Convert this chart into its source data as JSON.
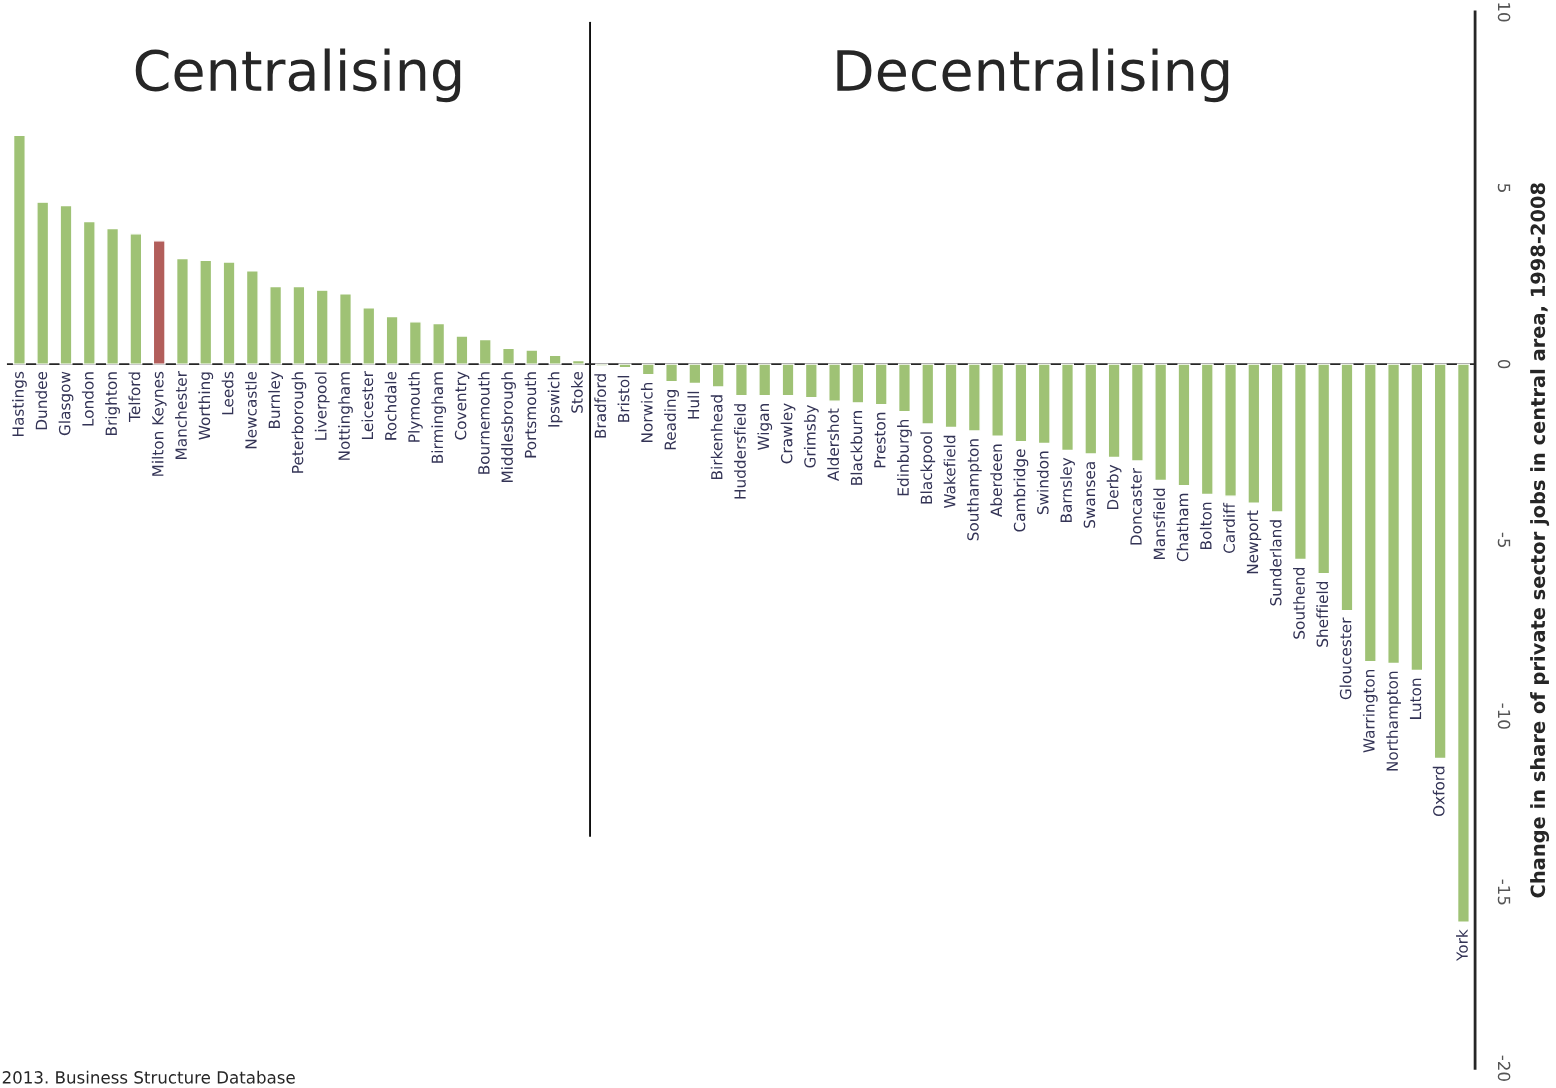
{
  "chart_data": {
    "type": "bar",
    "ylabel": "Change in share of private sector jobs in central area, 1998-2008",
    "annotations": [
      "Centralising",
      "Decentralising",
      "2013. Business Structure Database"
    ],
    "categories": [
      "Hastings",
      "Dundee",
      "Glasgow",
      "London",
      "Brighton",
      "Telford",
      "Milton Keynes",
      "Manchester",
      "Worthing",
      "Leeds",
      "Newcastle",
      "Burnley",
      "Peterborough",
      "Liverpool",
      "Nottingham",
      "Leicester",
      "Rochdale",
      "Plymouth",
      "Birmingham",
      "Coventry",
      "Bournemouth",
      "Middlesbrough",
      "Portsmouth",
      "Ipswich",
      "Stoke",
      "Bradford",
      "Bristol",
      "Norwich",
      "Reading",
      "Hull",
      "Birkenhead",
      "Huddersfield",
      "Wigan",
      "Crawley",
      "Grimsby",
      "Aldershot",
      "Blackburn",
      "Preston",
      "Edinburgh",
      "Blackpool",
      "Wakefield",
      "Southampton",
      "Aberdeen",
      "Cambridge",
      "Swindon",
      "Barnsley",
      "Swansea",
      "Derby",
      "Doncaster",
      "Mansfield",
      "Chatham",
      "Bolton",
      "Cardiff",
      "Newport",
      "Sunderland",
      "Southend",
      "Sheffield",
      "Gloucester",
      "Warrington",
      "Northampton",
      "Luton",
      "Oxford",
      "York"
    ],
    "values": [
      6.5,
      4.6,
      4.5,
      4.05,
      3.85,
      3.7,
      3.5,
      3.0,
      2.95,
      2.9,
      2.65,
      2.2,
      2.2,
      2.1,
      2.0,
      1.6,
      1.35,
      1.2,
      1.15,
      0.8,
      0.7,
      0.45,
      0.4,
      0.25,
      0.1,
      -0.05,
      -0.1,
      -0.3,
      -0.5,
      -0.55,
      -0.65,
      -0.9,
      -0.9,
      -0.9,
      -0.95,
      -1.05,
      -1.1,
      -1.15,
      -1.35,
      -1.7,
      -1.8,
      -1.9,
      -2.05,
      -2.2,
      -2.25,
      -2.45,
      -2.55,
      -2.65,
      -2.75,
      -3.3,
      -3.45,
      -3.7,
      -3.75,
      -3.95,
      -4.2,
      -5.55,
      -5.95,
      -7.0,
      -8.45,
      -8.5,
      -8.7,
      -11.2,
      -15.85
    ],
    "colors": [
      "#a0cf68",
      "#a0cf68",
      "#a0cf68",
      "#a0cf68",
      "#a0cf68",
      "#a0cf68",
      "#c0504d",
      "#a0cf68",
      "#a0cf68",
      "#a0cf68",
      "#a0cf68",
      "#a0cf68",
      "#a0cf68",
      "#a0cf68",
      "#a0cf68",
      "#a0cf68",
      "#a0cf68",
      "#a0cf68",
      "#a0cf68",
      "#a0cf68",
      "#a0cf68",
      "#a0cf68",
      "#a0cf68",
      "#a0cf68",
      "#a0cf68",
      "#a0cf68",
      "#a0cf68",
      "#a0cf68",
      "#a0cf68",
      "#a0cf68",
      "#a0cf68",
      "#a0cf68",
      "#a0cf68",
      "#a0cf68",
      "#a0cf68",
      "#a0cf68",
      "#a0cf68",
      "#a0cf68",
      "#a0cf68",
      "#a0cf68",
      "#a0cf68",
      "#a0cf68",
      "#a0cf68",
      "#a0cf68",
      "#a0cf68",
      "#a0cf68",
      "#a0cf68",
      "#a0cf68",
      "#a0cf68",
      "#a0cf68",
      "#a0cf68",
      "#a0cf68",
      "#a0cf68",
      "#a0cf68",
      "#a0cf68",
      "#a0cf68",
      "#a0cf68",
      "#a0cf68",
      "#a0cf68",
      "#a0cf68",
      "#a0cf68",
      "#a0cf68",
      "#a0cf68"
    ],
    "ylim": [
      -20,
      10
    ],
    "yticks": [
      -20,
      -15,
      -10,
      -5,
      0,
      5,
      10
    ],
    "grid": false
  }
}
